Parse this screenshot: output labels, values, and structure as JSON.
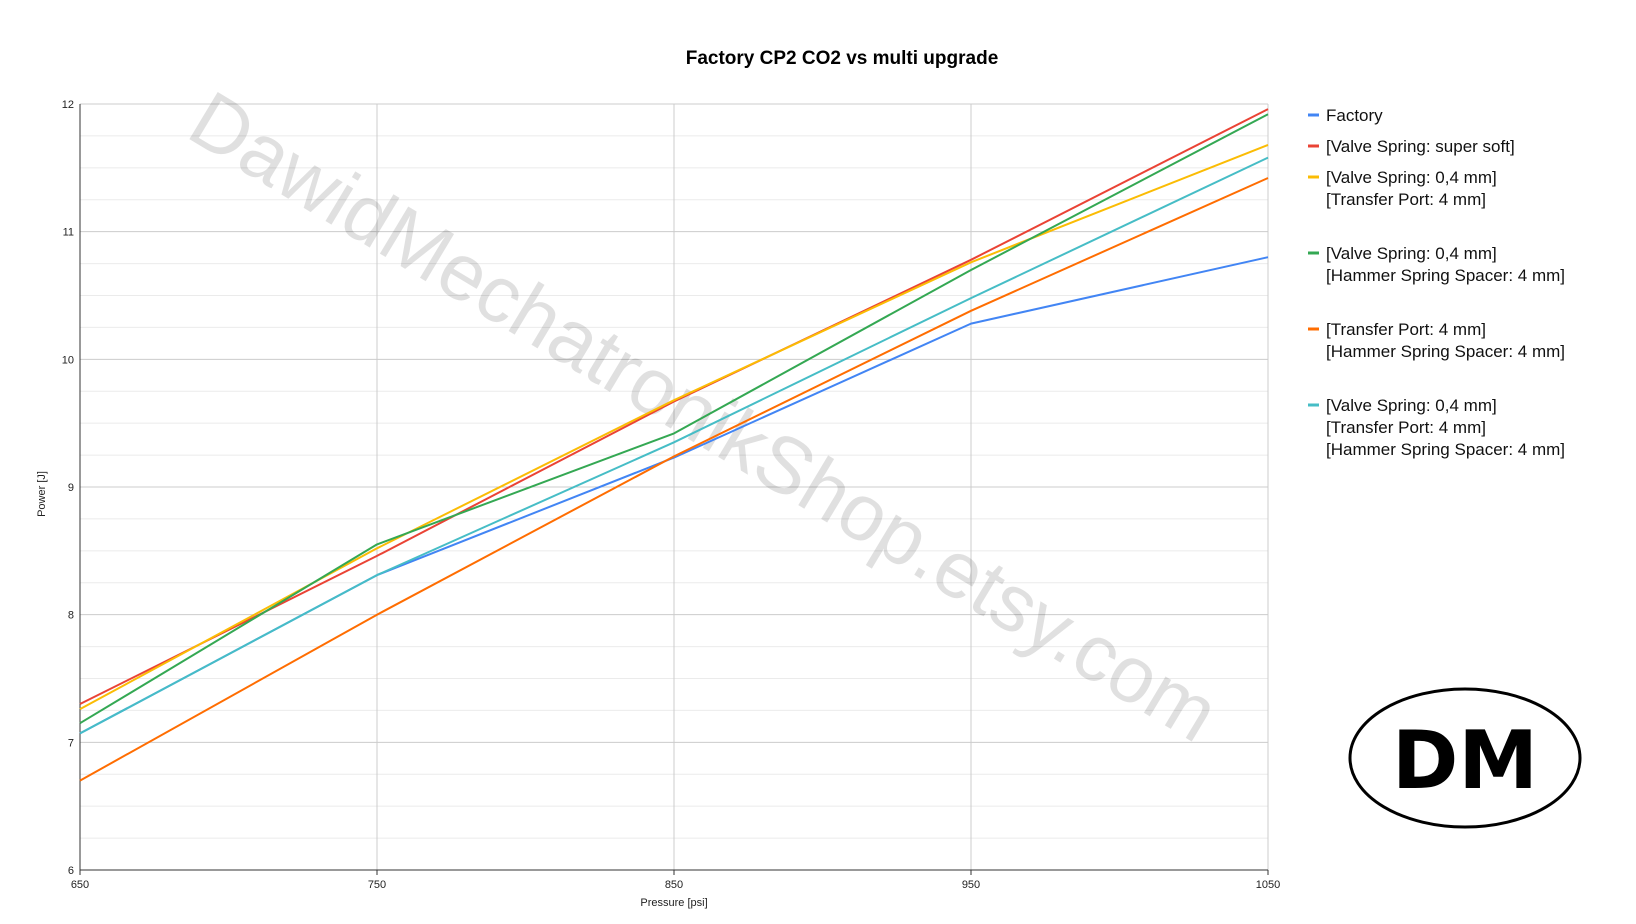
{
  "chart_data": {
    "type": "line",
    "title": "Factory CP2 CO2 vs multi upgrade",
    "xlabel": "Pressure [psi]",
    "ylabel": "Power [J]",
    "x": [
      650,
      750,
      850,
      950,
      1050
    ],
    "x_ticks": [
      "650",
      "750",
      "850",
      "950",
      "1050"
    ],
    "y_ticks": [
      "6",
      "7",
      "8",
      "9",
      "10",
      "11",
      "12"
    ],
    "xlim": [
      650,
      1050
    ],
    "ylim": [
      6,
      12
    ],
    "grid": true,
    "legend_position": "right",
    "series": [
      {
        "name": "Factory",
        "legend_lines": [
          "Factory"
        ],
        "color": "#4285f4",
        "values": [
          7.07,
          8.31,
          9.23,
          10.28,
          10.8
        ]
      },
      {
        "name": "[Valve Spring: super soft]",
        "legend_lines": [
          "[Valve Spring: super soft]"
        ],
        "color": "#ea4335",
        "values": [
          7.3,
          8.46,
          9.67,
          10.78,
          11.96
        ]
      },
      {
        "name": "[Valve Spring: 0,4 mm] [Transfer Port: 4 mm]",
        "legend_lines": [
          "[Valve Spring: 0,4 mm]",
          "[Transfer Port: 4 mm]"
        ],
        "color": "#fbbc04",
        "values": [
          7.26,
          8.52,
          9.68,
          10.76,
          11.68
        ]
      },
      {
        "name": "[Valve Spring: 0,4 mm] [Hammer Spring Spacer: 4 mm]",
        "legend_lines": [
          "[Valve Spring: 0,4 mm]",
          "[Hammer Spring Spacer: 4 mm]"
        ],
        "color": "#34a853",
        "values": [
          7.15,
          8.55,
          9.42,
          10.7,
          11.92
        ]
      },
      {
        "name": "[Transfer Port: 4 mm] [Hammer Spring Spacer: 4 mm]",
        "legend_lines": [
          "[Transfer Port: 4 mm]",
          "[Hammer Spring Spacer: 4 mm]"
        ],
        "color": "#ff6d01",
        "values": [
          6.7,
          8.0,
          9.24,
          10.38,
          11.42
        ]
      },
      {
        "name": "[Valve Spring: 0,4 mm] [Transfer Port: 4 mm] [Hammer Spring Spacer: 4 mm]",
        "legend_lines": [
          "[Valve Spring: 0,4 mm]",
          "[Transfer Port: 4 mm]",
          "[Hammer Spring Spacer: 4 mm]"
        ],
        "color": "#46bdc6",
        "values": [
          7.07,
          8.31,
          9.35,
          10.48,
          11.58
        ]
      }
    ]
  },
  "watermark": "DawidMechatronikShop.etsy.com",
  "logo": {
    "text": "DM"
  },
  "colors": {
    "grid": "#cccccc",
    "minor_grid": "#ebebeb",
    "axis": "#333333"
  }
}
